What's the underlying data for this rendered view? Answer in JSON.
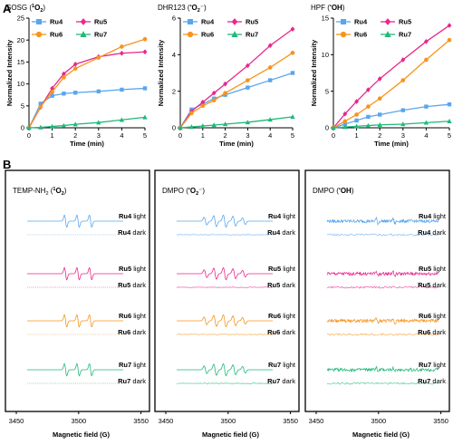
{
  "panels": {
    "A": "A",
    "B": "B"
  },
  "chart_data": [
    {
      "type": "line",
      "title_main": "SOSG (",
      "title_sup": "1",
      "title_sub": "O",
      "title_sub2": "2",
      "title_end": ")",
      "xlabel": "Time (min)",
      "ylabel": "Normalized Intensity",
      "xlim": [
        0,
        5
      ],
      "ylim": [
        0,
        25
      ],
      "xticks": [
        0,
        1,
        2,
        3,
        4,
        5
      ],
      "yticks": [
        0,
        5,
        10,
        15,
        20,
        25
      ],
      "x": [
        0,
        0.5,
        1,
        1.5,
        2,
        3,
        4,
        5
      ],
      "series": [
        {
          "name": "Ru4",
          "color": "#5aa6ee",
          "marker": "square",
          "values": [
            0,
            5.5,
            7.3,
            7.8,
            8.0,
            8.3,
            8.7,
            9.0
          ]
        },
        {
          "name": "Ru5",
          "color": "#e8288c",
          "marker": "diamond",
          "values": [
            0,
            4.7,
            9.0,
            12.3,
            14.5,
            16.2,
            17.0,
            17.3
          ]
        },
        {
          "name": "Ru6",
          "color": "#f7941d",
          "marker": "circle",
          "values": [
            0,
            4.8,
            8.2,
            11.5,
            13.5,
            16.0,
            18.5,
            20.2
          ]
        },
        {
          "name": "Ru7",
          "color": "#1fb97a",
          "marker": "triangle",
          "values": [
            0,
            0.1,
            0.3,
            0.5,
            0.8,
            1.2,
            1.8,
            2.4
          ]
        }
      ]
    },
    {
      "type": "line",
      "title_main": "DHR123 (",
      "title_sup": "•",
      "title_sub": "O",
      "title_sub2": "2",
      "title_end": "⁻)",
      "xlabel": "Time (min)",
      "ylabel": "Normalized Intensity",
      "xlim": [
        0,
        5
      ],
      "ylim": [
        0,
        6
      ],
      "xticks": [
        0,
        1,
        2,
        3,
        4,
        5
      ],
      "yticks": [
        0,
        2,
        4,
        6
      ],
      "x": [
        0,
        0.5,
        1,
        1.5,
        2,
        3,
        4,
        5
      ],
      "series": [
        {
          "name": "Ru4",
          "color": "#5aa6ee",
          "marker": "square",
          "values": [
            0,
            1.0,
            1.3,
            1.6,
            1.8,
            2.2,
            2.6,
            3.0
          ]
        },
        {
          "name": "Ru5",
          "color": "#e8288c",
          "marker": "diamond",
          "values": [
            0,
            0.9,
            1.4,
            1.9,
            2.4,
            3.4,
            4.5,
            5.4
          ]
        },
        {
          "name": "Ru6",
          "color": "#f7941d",
          "marker": "circle",
          "values": [
            0,
            0.8,
            1.2,
            1.5,
            1.9,
            2.6,
            3.3,
            4.1
          ]
        },
        {
          "name": "Ru7",
          "color": "#1fb97a",
          "marker": "triangle",
          "values": [
            0,
            0.05,
            0.1,
            0.15,
            0.2,
            0.3,
            0.45,
            0.6
          ]
        }
      ]
    },
    {
      "type": "line",
      "title_main": "HPF (",
      "title_sup": "•",
      "title_sub": "OH",
      "title_sub2": "",
      "title_end": ")",
      "xlabel": "Time (min)",
      "ylabel": "Normalized Intensity",
      "xlim": [
        0,
        5
      ],
      "ylim": [
        0,
        15
      ],
      "xticks": [
        0,
        1,
        2,
        3,
        4,
        5
      ],
      "yticks": [
        0,
        5,
        10,
        15
      ],
      "x": [
        0,
        0.5,
        1,
        1.5,
        2,
        3,
        4,
        5
      ],
      "series": [
        {
          "name": "Ru4",
          "color": "#5aa6ee",
          "marker": "square",
          "values": [
            0,
            0.5,
            1.0,
            1.5,
            1.8,
            2.4,
            2.9,
            3.2
          ]
        },
        {
          "name": "Ru5",
          "color": "#e8288c",
          "marker": "diamond",
          "values": [
            0,
            1.9,
            3.6,
            5.2,
            6.7,
            9.3,
            11.8,
            14.0
          ]
        },
        {
          "name": "Ru6",
          "color": "#f7941d",
          "marker": "circle",
          "values": [
            0,
            0.9,
            1.8,
            2.9,
            4.0,
            6.5,
            9.3,
            12.0
          ]
        },
        {
          "name": "Ru7",
          "color": "#1fb97a",
          "marker": "triangle",
          "values": [
            0,
            0.1,
            0.2,
            0.3,
            0.4,
            0.5,
            0.7,
            0.9
          ]
        }
      ]
    }
  ],
  "epr": {
    "xlabel": "Magnetic field (G)",
    "xticks": [
      3450,
      3500,
      3550
    ],
    "panels": [
      {
        "title": "TEMP-NH",
        "title_sub": "2",
        "title_tail": " (",
        "title_sup": "1",
        "title_o": "O",
        "title_o_sub": "2",
        "title_end": ")",
        "kind": "tempo"
      },
      {
        "title": "DMPO (",
        "title_sub": "",
        "title_tail": "",
        "title_sup": "•",
        "title_o": "O",
        "title_o_sub": "2",
        "title_end": "⁻)",
        "kind": "dmpo_o2"
      },
      {
        "title": "DMPO (",
        "title_sub": "",
        "title_tail": "",
        "title_sup": "•",
        "title_o": "OH",
        "title_o_sub": "",
        "title_end": ")",
        "kind": "dmpo_oh"
      }
    ],
    "rows": [
      {
        "name": "Ru4",
        "color": "#5aa6ee",
        "light": " light",
        "dark": " dark"
      },
      {
        "name": "Ru5",
        "color": "#e8288c",
        "light": " light",
        "dark": " dark"
      },
      {
        "name": "Ru6",
        "color": "#f7941d",
        "light": " light",
        "dark": " dark"
      },
      {
        "name": "Ru7",
        "color": "#1fb97a",
        "light": " light",
        "dark": " dark"
      }
    ]
  }
}
